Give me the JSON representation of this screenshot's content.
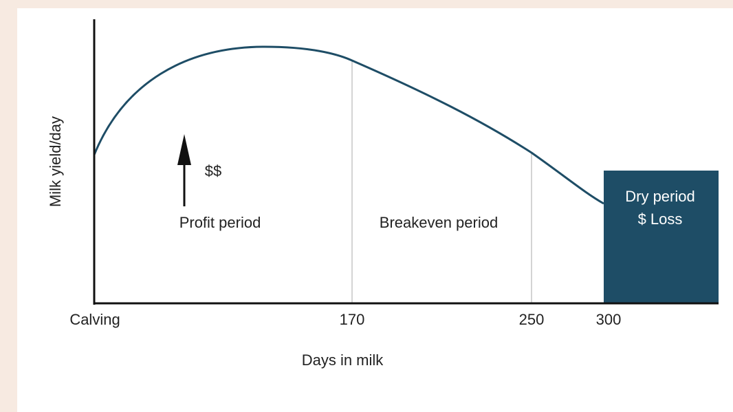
{
  "y_axis": {
    "label": "Milk yield/day"
  },
  "x_axis": {
    "label": "Days in milk",
    "ticks": [
      "Calving",
      "170",
      "250",
      "300"
    ]
  },
  "annotations": {
    "arrow_label": "$$",
    "profit": "Profit period",
    "breakeven": "Breakeven period",
    "dry": [
      "Dry period",
      "$ Loss"
    ]
  }
}
